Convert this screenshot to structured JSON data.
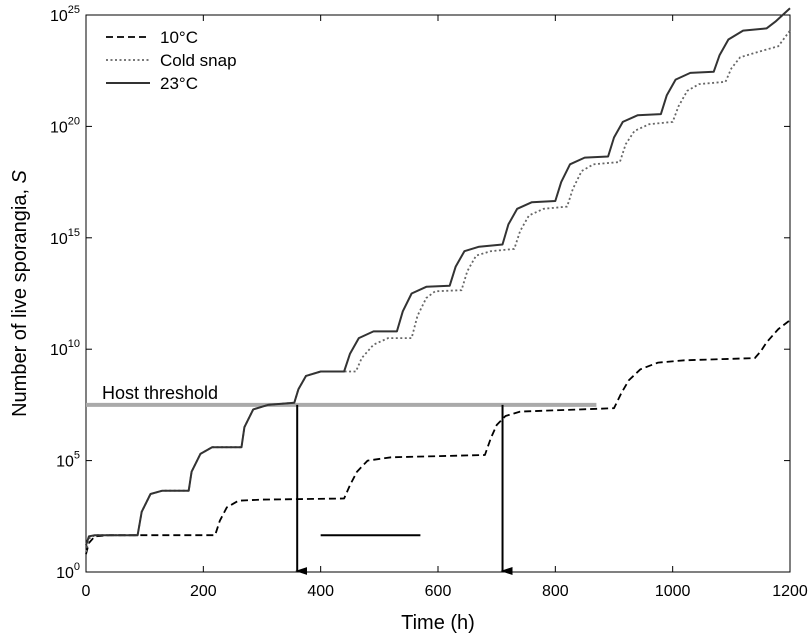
{
  "chart_data": {
    "type": "line",
    "xlabel": "Time (h)",
    "ylabel_text": "Number of live sporangia, ",
    "ylabel_var": "S",
    "y_scale": "log",
    "xlim": [
      0,
      1200
    ],
    "ylim_log10": [
      0,
      25
    ],
    "x_ticks": [
      "0",
      "200",
      "400",
      "600",
      "800",
      "1000",
      "1200"
    ],
    "y_tick_base": "10",
    "y_tick_exponents": [
      "0",
      "5",
      "10",
      "15",
      "20",
      "25"
    ],
    "legend": {
      "placement": "top-left"
    },
    "series": [
      {
        "name": "10°C",
        "style": "dashed",
        "color": "#000000",
        "log10_values": [
          [
            0,
            0.8
          ],
          [
            5,
            1.3
          ],
          [
            15,
            1.6
          ],
          [
            40,
            1.65
          ],
          [
            220,
            1.65
          ],
          [
            228,
            2.3
          ],
          [
            240,
            2.9
          ],
          [
            260,
            3.2
          ],
          [
            300,
            3.25
          ],
          [
            440,
            3.3
          ],
          [
            450,
            3.9
          ],
          [
            462,
            4.5
          ],
          [
            480,
            5.0
          ],
          [
            520,
            5.15
          ],
          [
            680,
            5.25
          ],
          [
            690,
            6.0
          ],
          [
            700,
            6.6
          ],
          [
            715,
            7.0
          ],
          [
            740,
            7.2
          ],
          [
            900,
            7.35
          ],
          [
            912,
            8.0
          ],
          [
            925,
            8.6
          ],
          [
            945,
            9.1
          ],
          [
            975,
            9.4
          ],
          [
            1020,
            9.5
          ],
          [
            1140,
            9.6
          ],
          [
            1150,
            9.9
          ],
          [
            1160,
            10.3
          ],
          [
            1180,
            10.9
          ],
          [
            1200,
            11.3
          ]
        ]
      },
      {
        "name": "Cold snap",
        "style": "dotted",
        "color": "#666666",
        "log10_values": [
          [
            0,
            0.9
          ],
          [
            5,
            1.5
          ],
          [
            15,
            1.65
          ],
          [
            88,
            1.65
          ],
          [
            95,
            2.7
          ],
          [
            110,
            3.5
          ],
          [
            130,
            3.65
          ],
          [
            175,
            3.65
          ],
          [
            180,
            4.5
          ],
          [
            195,
            5.3
          ],
          [
            215,
            5.6
          ],
          [
            265,
            5.6
          ],
          [
            270,
            6.5
          ],
          [
            285,
            7.3
          ],
          [
            310,
            7.5
          ],
          [
            355,
            7.6
          ],
          [
            362,
            8.2
          ],
          [
            375,
            8.8
          ],
          [
            400,
            9.0
          ],
          [
            460,
            9.0
          ],
          [
            470,
            9.6
          ],
          [
            490,
            10.2
          ],
          [
            515,
            10.5
          ],
          [
            555,
            10.5
          ],
          [
            565,
            11.5
          ],
          [
            580,
            12.3
          ],
          [
            595,
            12.6
          ],
          [
            640,
            12.65
          ],
          [
            650,
            13.5
          ],
          [
            665,
            14.2
          ],
          [
            690,
            14.4
          ],
          [
            730,
            14.5
          ],
          [
            740,
            15.3
          ],
          [
            755,
            16.0
          ],
          [
            780,
            16.3
          ],
          [
            820,
            16.4
          ],
          [
            830,
            17.2
          ],
          [
            845,
            18.0
          ],
          [
            865,
            18.3
          ],
          [
            910,
            18.4
          ],
          [
            920,
            19.2
          ],
          [
            935,
            19.8
          ],
          [
            960,
            20.1
          ],
          [
            1000,
            20.2
          ],
          [
            1010,
            20.9
          ],
          [
            1025,
            21.6
          ],
          [
            1045,
            21.9
          ],
          [
            1090,
            22.0
          ],
          [
            1100,
            22.6
          ],
          [
            1115,
            23.1
          ],
          [
            1140,
            23.3
          ],
          [
            1180,
            23.6
          ],
          [
            1200,
            24.3
          ]
        ]
      },
      {
        "name": "23°C",
        "style": "solid",
        "color": "#333333",
        "log10_values": [
          [
            0,
            1.2
          ],
          [
            5,
            1.6
          ],
          [
            15,
            1.65
          ],
          [
            88,
            1.65
          ],
          [
            95,
            2.7
          ],
          [
            110,
            3.5
          ],
          [
            130,
            3.65
          ],
          [
            175,
            3.65
          ],
          [
            180,
            4.5
          ],
          [
            195,
            5.3
          ],
          [
            215,
            5.6
          ],
          [
            265,
            5.6
          ],
          [
            270,
            6.5
          ],
          [
            285,
            7.3
          ],
          [
            310,
            7.5
          ],
          [
            355,
            7.6
          ],
          [
            362,
            8.2
          ],
          [
            375,
            8.8
          ],
          [
            400,
            9.0
          ],
          [
            440,
            9.0
          ],
          [
            450,
            9.8
          ],
          [
            465,
            10.5
          ],
          [
            490,
            10.8
          ],
          [
            530,
            10.8
          ],
          [
            540,
            11.7
          ],
          [
            555,
            12.5
          ],
          [
            580,
            12.8
          ],
          [
            620,
            12.85
          ],
          [
            630,
            13.7
          ],
          [
            645,
            14.4
          ],
          [
            670,
            14.6
          ],
          [
            710,
            14.7
          ],
          [
            720,
            15.6
          ],
          [
            735,
            16.3
          ],
          [
            760,
            16.6
          ],
          [
            800,
            16.65
          ],
          [
            810,
            17.5
          ],
          [
            825,
            18.3
          ],
          [
            850,
            18.6
          ],
          [
            890,
            18.65
          ],
          [
            900,
            19.5
          ],
          [
            915,
            20.2
          ],
          [
            940,
            20.5
          ],
          [
            980,
            20.55
          ],
          [
            990,
            21.4
          ],
          [
            1005,
            22.1
          ],
          [
            1030,
            22.4
          ],
          [
            1070,
            22.45
          ],
          [
            1080,
            23.2
          ],
          [
            1095,
            23.9
          ],
          [
            1120,
            24.3
          ],
          [
            1160,
            24.4
          ],
          [
            1175,
            24.7
          ],
          [
            1200,
            25.3
          ]
        ]
      }
    ],
    "host_threshold": {
      "label": "Host threshold",
      "log10_value": 7.5,
      "x_range": [
        0,
        870
      ],
      "color": "#aaaaaa"
    },
    "arrows": [
      {
        "x": 360,
        "from_log10": 7.5,
        "to_log10": 0
      },
      {
        "x": 710,
        "from_log10": 7.5,
        "to_log10": 0
      }
    ],
    "segment": {
      "x_range": [
        400,
        570
      ],
      "log10_value": 1.65
    }
  }
}
